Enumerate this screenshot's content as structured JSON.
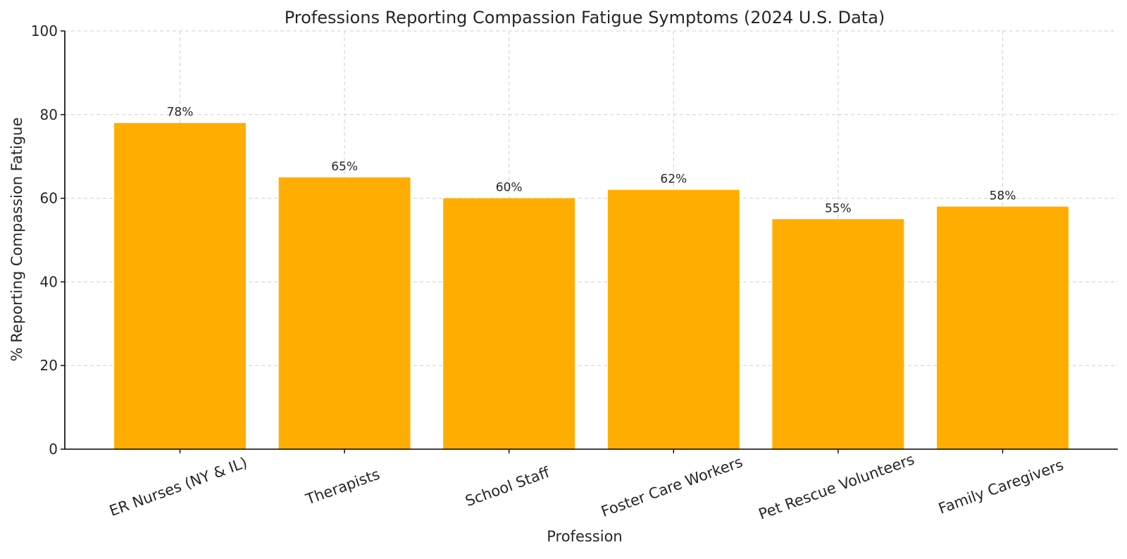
{
  "chart_data": {
    "type": "bar",
    "title": "Professions Reporting Compassion Fatigue Symptoms (2024 U.S. Data)",
    "xlabel": "Profession",
    "ylabel": "% Reporting Compassion Fatigue",
    "categories": [
      "ER Nurses (NY & IL)",
      "Therapists",
      "School Staff",
      "Foster Care Workers",
      "Pet Rescue Volunteers",
      "Family Caregivers"
    ],
    "values": [
      78,
      65,
      60,
      62,
      55,
      58
    ],
    "data_labels": [
      "78%",
      "65%",
      "60%",
      "62%",
      "55%",
      "58%"
    ],
    "ylim": [
      0,
      100
    ],
    "yticks": [
      0,
      20,
      40,
      60,
      80,
      100
    ],
    "grid": true,
    "bar_color": "#ffae00"
  }
}
